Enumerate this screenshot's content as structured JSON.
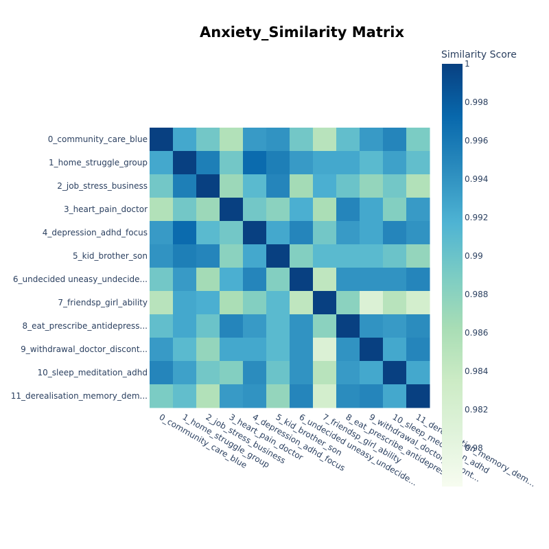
{
  "chart_data": {
    "type": "heatmap",
    "title": "Anxiety_Similarity Matrix",
    "categories": [
      "0_community_care_blue",
      "1_home_struggle_group",
      "2_job_stress_business",
      "3_heart_pain_doctor",
      "4_depression_adhd_focus",
      "5_kid_brother_son",
      "6_undecided uneasy_undecide...",
      "7_friendsp_girl_ability",
      "8_eat_prescribe_antidepress...",
      "9_withdrawal_doctor_discont...",
      "10_sleep_meditation_adhd",
      "11_derealisation_memory_dem..."
    ],
    "values": [
      [
        1.0,
        0.9925,
        0.9895,
        0.9855,
        0.9935,
        0.994,
        0.9895,
        0.985,
        0.9905,
        0.9935,
        0.995,
        0.989
      ],
      [
        0.9925,
        1.0,
        0.9955,
        0.9895,
        0.997,
        0.9955,
        0.9935,
        0.9925,
        0.9925,
        0.991,
        0.993,
        0.9905
      ],
      [
        0.9895,
        0.9955,
        1.0,
        0.987,
        0.991,
        0.995,
        0.9865,
        0.992,
        0.99,
        0.9875,
        0.9895,
        0.9855
      ],
      [
        0.9855,
        0.9895,
        0.987,
        1.0,
        0.9895,
        0.988,
        0.992,
        0.986,
        0.995,
        0.9925,
        0.9885,
        0.9935
      ],
      [
        0.9935,
        0.997,
        0.991,
        0.9895,
        1.0,
        0.9925,
        0.995,
        0.9895,
        0.9935,
        0.9925,
        0.995,
        0.994
      ],
      [
        0.994,
        0.9955,
        0.995,
        0.988,
        0.9925,
        1.0,
        0.9885,
        0.991,
        0.991,
        0.991,
        0.99,
        0.9875
      ],
      [
        0.9895,
        0.9935,
        0.9865,
        0.992,
        0.995,
        0.9885,
        1.0,
        0.9845,
        0.994,
        0.994,
        0.994,
        0.995
      ],
      [
        0.985,
        0.9925,
        0.992,
        0.986,
        0.9885,
        0.991,
        0.9845,
        1.0,
        0.988,
        0.9815,
        0.985,
        0.9825
      ],
      [
        0.9905,
        0.9925,
        0.99,
        0.995,
        0.9935,
        0.991,
        0.994,
        0.988,
        1.0,
        0.994,
        0.9935,
        0.9945
      ],
      [
        0.9935,
        0.991,
        0.9875,
        0.9925,
        0.9925,
        0.991,
        0.994,
        0.9815,
        0.994,
        1.0,
        0.9925,
        0.995
      ],
      [
        0.995,
        0.993,
        0.9895,
        0.9885,
        0.9945,
        0.99,
        0.994,
        0.985,
        0.9935,
        0.9925,
        1.0,
        0.9925
      ],
      [
        0.989,
        0.9905,
        0.9855,
        0.9935,
        0.994,
        0.9875,
        0.995,
        0.9825,
        0.9945,
        0.995,
        0.9925,
        1.0
      ]
    ],
    "colorscale": "GnBu",
    "colorscale_stops": [
      "#f7fcf0",
      "#e0f3db",
      "#ccebc5",
      "#a8ddb5",
      "#7bccc4",
      "#4eb3d3",
      "#2b8cbe",
      "#0868ac",
      "#084081"
    ],
    "colorbar": {
      "title": "Similarity Score",
      "range": [
        0.978,
        1.0
      ],
      "ticks": [
        1,
        0.998,
        0.996,
        0.994,
        0.992,
        0.99,
        0.988,
        0.986,
        0.984,
        0.982,
        0.98
      ]
    }
  }
}
